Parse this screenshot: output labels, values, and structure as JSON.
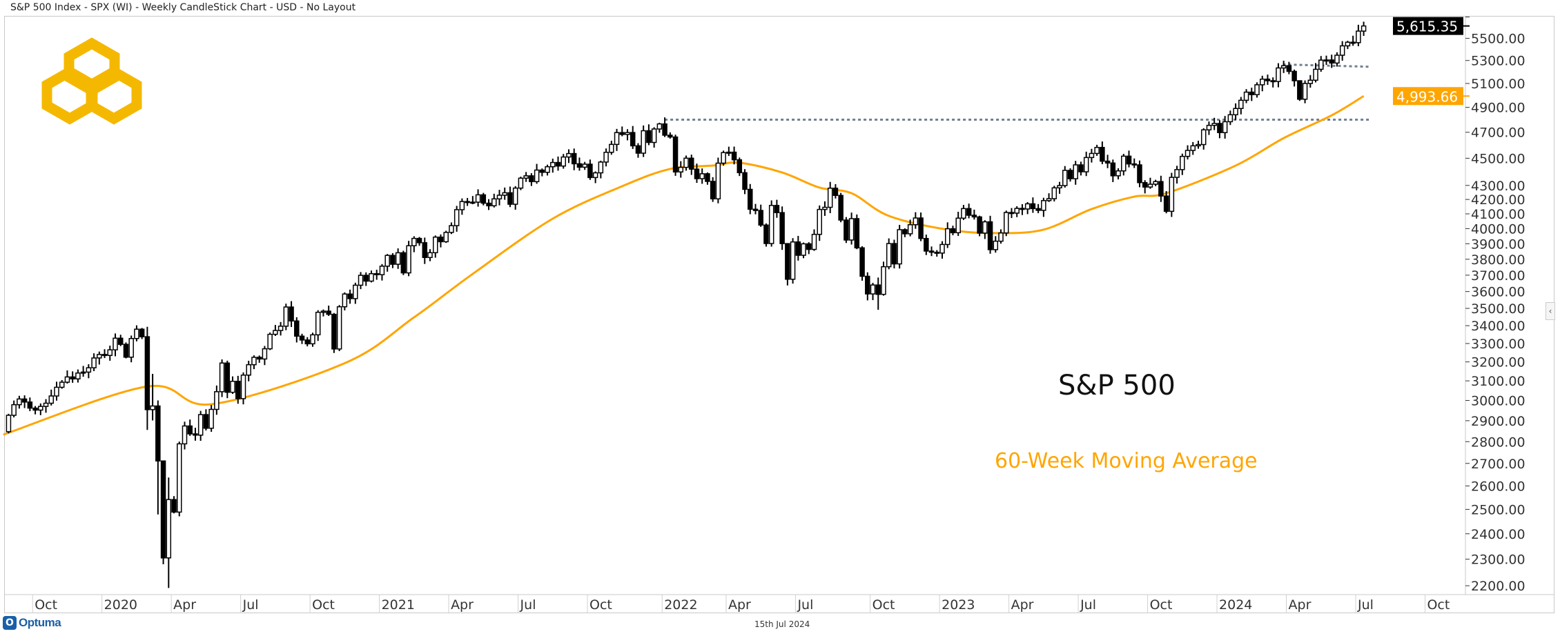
{
  "header": {
    "title": "S&P 500 Index - SPX (WI) - Weekly CandleStick Chart - USD - No Layout"
  },
  "footer": {
    "date": "15th Jul 2024",
    "brand": "Optuma",
    "brand_icon": "optuma-logo-icon",
    "collapse_icon": "chevron-left-icon",
    "collapse_glyph": "‹"
  },
  "annotations": {
    "title": "S&P 500",
    "ma_label": "60-Week Moving Average"
  },
  "colors": {
    "ma": "#FFA500",
    "levels": "#708090",
    "logo": "#F5B800",
    "up_body": "#ffffff",
    "down_body": "#000000"
  },
  "chart_data": {
    "type": "candlestick",
    "title": "S&P 500",
    "interval": "weekly",
    "first_week_ending": "2019-08-23",
    "first_open": 2888.68,
    "open_rule": "previous week close",
    "close": [
      2847.11,
      2926.46,
      2978.71,
      3007.39,
      2992.07,
      2961.79,
      2952.01,
      2970.27,
      2986.2,
      3022.55,
      3066.91,
      3093.08,
      3120.46,
      3110.29,
      3140.98,
      3145.91,
      3168.8,
      3221.22,
      3240.02,
      3234.85,
      3265.35,
      3329.62,
      3295.47,
      3225.52,
      3327.71,
      3380.16,
      3337.75,
      2954.22,
      2972.37,
      2711.02,
      2304.92,
      2541.47,
      2488.65,
      2789.82,
      2874.56,
      2836.74,
      2830.71,
      2929.8,
      2863.7,
      2955.45,
      3044.31,
      3193.93,
      3041.31,
      3097.74,
      3009.05,
      3130.01,
      3185.04,
      3224.73,
      3215.63,
      3271.12,
      3351.28,
      3372.85,
      3397.16,
      3508.01,
      3426.96,
      3340.97,
      3319.47,
      3298.46,
      3348.42,
      3477.13,
      3483.81,
      3465.39,
      3269.96,
      3509.44,
      3585.15,
      3557.54,
      3638.35,
      3699.12,
      3663.46,
      3709.41,
      3703.06,
      3756.07,
      3824.68,
      3768.25,
      3841.47,
      3714.24,
      3886.83,
      3934.83,
      3906.71,
      3811.15,
      3841.94,
      3943.34,
      3913.1,
      3974.54,
      4019.87,
      4128.8,
      4185.47,
      4180.17,
      4181.17,
      4232.6,
      4173.85,
      4155.86,
      4204.11,
      4229.89,
      4247.44,
      4166.45,
      4280.7,
      4352.34,
      4369.55,
      4327.16,
      4411.79,
      4395.26,
      4436.52,
      4468.0,
      4441.67,
      4509.37,
      4535.43,
      4458.58,
      4432.99,
      4455.48,
      4357.04,
      4391.34,
      4471.37,
      4544.9,
      4605.38,
      4697.53,
      4682.85,
      4697.96,
      4594.62,
      4538.43,
      4712.02,
      4620.64,
      4725.79,
      4766.18,
      4677.03,
      4662.85,
      4397.94,
      4431.85,
      4500.53,
      4418.64,
      4348.87,
      4384.65,
      4328.87,
      4204.31,
      4463.12,
      4543.06,
      4545.86,
      4488.28,
      4392.59,
      4271.78,
      4131.93,
      4123.34,
      4023.89,
      3901.36,
      4158.24,
      4108.54,
      3900.86,
      3674.84,
      3911.74,
      3825.33,
      3899.38,
      3863.16,
      3961.63,
      4130.29,
      4145.19,
      4280.15,
      4228.48,
      4057.66,
      3924.26,
      4067.36,
      3873.33,
      3693.23,
      3585.62,
      3639.66,
      3583.07,
      3752.75,
      3901.06,
      3770.55,
      3992.93,
      3965.34,
      4026.12,
      4071.7,
      3934.38,
      3852.36,
      3844.82,
      3839.5,
      3895.08,
      3999.09,
      3972.61,
      4070.56,
      4136.48,
      4090.46,
      4079.09,
      3970.04,
      4045.64,
      3861.59,
      3916.64,
      3970.99,
      4109.31,
      4105.02,
      4137.64,
      4133.52,
      4169.48,
      4136.25,
      4124.08,
      4191.98,
      4205.45,
      4282.37,
      4298.86,
      4409.59,
      4348.33,
      4450.38,
      4398.95,
      4505.42,
      4536.34,
      4582.23,
      4478.03,
      4464.05,
      4369.71,
      4405.71,
      4515.77,
      4457.49,
      4450.32,
      4320.06,
      4288.05,
      4308.5,
      4327.78,
      4224.16,
      4117.37,
      4358.34,
      4415.24,
      4514.02,
      4559.34,
      4594.63,
      4604.37,
      4719.19,
      4754.63,
      4769.83,
      4697.24,
      4783.83,
      4839.81,
      4890.97,
      4958.61,
      5026.61,
      5005.57,
      5088.8,
      5137.08,
      5123.69,
      5117.09,
      5234.18,
      5254.35,
      5204.34,
      5123.41,
      4967.23,
      5099.96,
      5127.79,
      5222.68,
      5303.27,
      5304.72,
      5277.51,
      5346.99,
      5431.6,
      5464.62,
      5460.48,
      5567.19,
      5615.35
    ],
    "high_low_overrides": {
      "27": [
        3393.5,
        2855.8
      ],
      "28": [
        3136.7,
        2901.5
      ],
      "29": [
        3000.0,
        2478.9
      ],
      "30": [
        2711.3,
        2280.5
      ],
      "31": [
        2637.0,
        2191.9
      ],
      "124": [
        4818.6,
        4662.7
      ],
      "147": [
        3837.6,
        3636.9
      ],
      "164": [
        3685.4,
        3491.6
      ],
      "218": [
        4259.0,
        4103.8
      ],
      "243": [
        5079.8,
        4953.6
      ],
      "255": [
        5655.6,
        5523.0
      ]
    },
    "moving_average": {
      "name": "60-Week Moving Average",
      "points": [
        [
          "2019-08-23",
          2833
        ],
        [
          "2020-02-28",
          3071
        ],
        [
          "2020-05-22",
          2981
        ],
        [
          "2020-11-13",
          3193
        ],
        [
          "2021-02-12",
          3448
        ],
        [
          "2021-04-30",
          3708
        ],
        [
          "2021-08-13",
          4067
        ],
        [
          "2021-11-12",
          4294
        ],
        [
          "2022-01-14",
          4420
        ],
        [
          "2022-03-11",
          4445
        ],
        [
          "2022-04-15",
          4466
        ],
        [
          "2022-06-10",
          4394
        ],
        [
          "2022-07-29",
          4284
        ],
        [
          "2022-09-09",
          4244
        ],
        [
          "2022-10-28",
          4086
        ],
        [
          "2023-01-13",
          3993
        ],
        [
          "2023-03-17",
          3970
        ],
        [
          "2023-05-19",
          3993
        ],
        [
          "2023-07-21",
          4133
        ],
        [
          "2023-09-15",
          4220
        ],
        [
          "2023-10-27",
          4244
        ],
        [
          "2024-01-26",
          4445
        ],
        [
          "2024-03-29",
          4654
        ],
        [
          "2024-05-31",
          4835
        ],
        [
          "2024-07-12",
          4993.66
        ]
      ]
    },
    "levels": [
      {
        "name": "resistance-2022-high",
        "from": "2022-01-07",
        "to": "2024-07-19",
        "value_from": 4800,
        "value_to": 4800
      },
      {
        "name": "resistance-2024-high",
        "from": "2024-03-28",
        "to": "2024-07-19",
        "value_from": 5265,
        "value_to": 5245
      }
    ],
    "last_price": {
      "value": 5615.35,
      "label": "5,615.35"
    },
    "ma_last": {
      "value": 4993.66,
      "label": "4,993.66"
    },
    "yscale": "log",
    "ylim": [
      2170,
      5760
    ],
    "y_ticks": [
      2200,
      2300,
      2400,
      2500,
      2600,
      2700,
      2800,
      2900,
      3000,
      3100,
      3200,
      3300,
      3400,
      3500,
      3600,
      3700,
      3800,
      3900,
      4000,
      4100,
      4200,
      4300,
      4500,
      4700,
      4900,
      5100,
      5300,
      5500,
      5700
    ],
    "y_tick_labels_hidden": [
      5700
    ],
    "x_ticks": [
      [
        "2019-10",
        "Oct"
      ],
      [
        "2020-01",
        "2020"
      ],
      [
        "2020-04",
        "Apr"
      ],
      [
        "2020-07",
        "Jul"
      ],
      [
        "2020-10",
        "Oct"
      ],
      [
        "2021-01",
        "2021"
      ],
      [
        "2021-04",
        "Apr"
      ],
      [
        "2021-07",
        "Jul"
      ],
      [
        "2021-10",
        "Oct"
      ],
      [
        "2022-01",
        "2022"
      ],
      [
        "2022-04",
        "Apr"
      ],
      [
        "2022-07",
        "Jul"
      ],
      [
        "2022-10",
        "Oct"
      ],
      [
        "2023-01",
        "2023"
      ],
      [
        "2023-04",
        "Apr"
      ],
      [
        "2023-07",
        "Jul"
      ],
      [
        "2023-10",
        "Oct"
      ],
      [
        "2024-01",
        "2024"
      ],
      [
        "2024-04",
        "Apr"
      ],
      [
        "2024-07",
        "Jul"
      ],
      [
        "2024-10",
        "Oct"
      ]
    ],
    "grid": false,
    "legend": "none"
  }
}
